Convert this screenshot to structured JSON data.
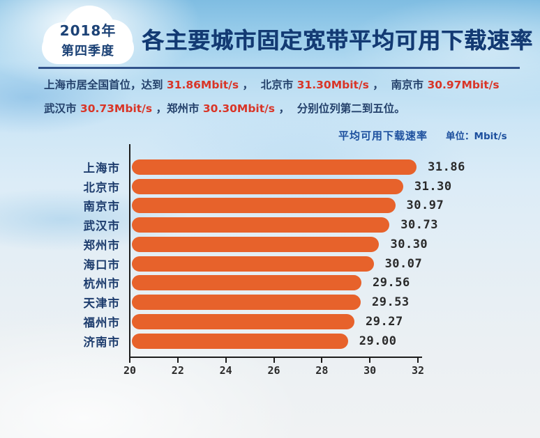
{
  "header": {
    "badge": {
      "line1": "2018年",
      "line2": "第四季度"
    },
    "title": "各主要城市固定宽带平均可用下载速率"
  },
  "intro": {
    "lines": [
      {
        "segments": [
          {
            "text": "上海市居全国首位，达到 ",
            "red": false
          },
          {
            "text": "31.86Mbit/s",
            "red": true
          },
          {
            "text": " ，  北京市 ",
            "red": false
          },
          {
            "text": "31.30Mbit/s",
            "red": true
          },
          {
            "text": " ，  南京市 ",
            "red": false
          },
          {
            "text": "30.97Mbit/s",
            "red": true
          }
        ]
      },
      {
        "segments": [
          {
            "text": "武汉市 ",
            "red": false
          },
          {
            "text": "30.73Mbit/s",
            "red": true
          },
          {
            "text": " ，郑州市 ",
            "red": false
          },
          {
            "text": "30.30Mbit/s",
            "red": true
          },
          {
            "text": " ，  分别位列第二到五位。",
            "red": false
          }
        ]
      }
    ]
  },
  "legend": {
    "label": "平均可用下载速率",
    "unit": "单位：Mbit/s"
  },
  "chart_data": {
    "type": "bar",
    "orientation": "horizontal",
    "title": "平均可用下载速率",
    "unit": "Mbit/s",
    "categories": [
      "上海市",
      "北京市",
      "南京市",
      "武汉市",
      "郑州市",
      "海口市",
      "杭州市",
      "天津市",
      "福州市",
      "济南市"
    ],
    "values": [
      31.86,
      31.3,
      30.97,
      30.73,
      30.3,
      30.07,
      29.56,
      29.53,
      29.27,
      29.0
    ],
    "value_labels": [
      "31.86",
      "31.30",
      "30.97",
      "30.73",
      "30.30",
      "30.07",
      "29.56",
      "29.53",
      "29.27",
      "29.00"
    ],
    "xlim": [
      20,
      32
    ],
    "x_ticks": [
      "20",
      "22",
      "24",
      "26",
      "28",
      "30",
      "32"
    ],
    "grid": false,
    "legend_position": "top-right",
    "bar_color": "#e7622b"
  },
  "colors": {
    "bar": "#e7622b",
    "title_navy": "#133a73",
    "text_navy": "#24416b",
    "value_red": "#d93527",
    "axis": "#1c1c1c",
    "rule_blue": "#31538b"
  }
}
